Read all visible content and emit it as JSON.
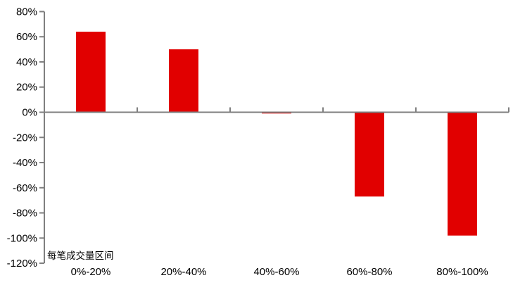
{
  "chart_data": {
    "type": "bar",
    "title": "",
    "categories": [
      "0%-20%",
      "20%-40%",
      "40%-60%",
      "60%-80%",
      "80%-100%"
    ],
    "values": [
      64,
      50,
      -1,
      -67,
      -98
    ],
    "value_unit": "%",
    "xlabel": "每笔成交量区间",
    "ylabel": "",
    "ylim": [
      -120,
      80
    ],
    "ytick_step": 20,
    "ytick_labels": [
      "80%",
      "60%",
      "40%",
      "20%",
      "0%",
      "-20%",
      "-40%",
      "-60%",
      "-80%",
      "-100%",
      "-120%"
    ],
    "grid": false,
    "legend": false,
    "bar_color": "#e10000",
    "axis_color": "#7f7f7f",
    "text_color": "#000000"
  }
}
